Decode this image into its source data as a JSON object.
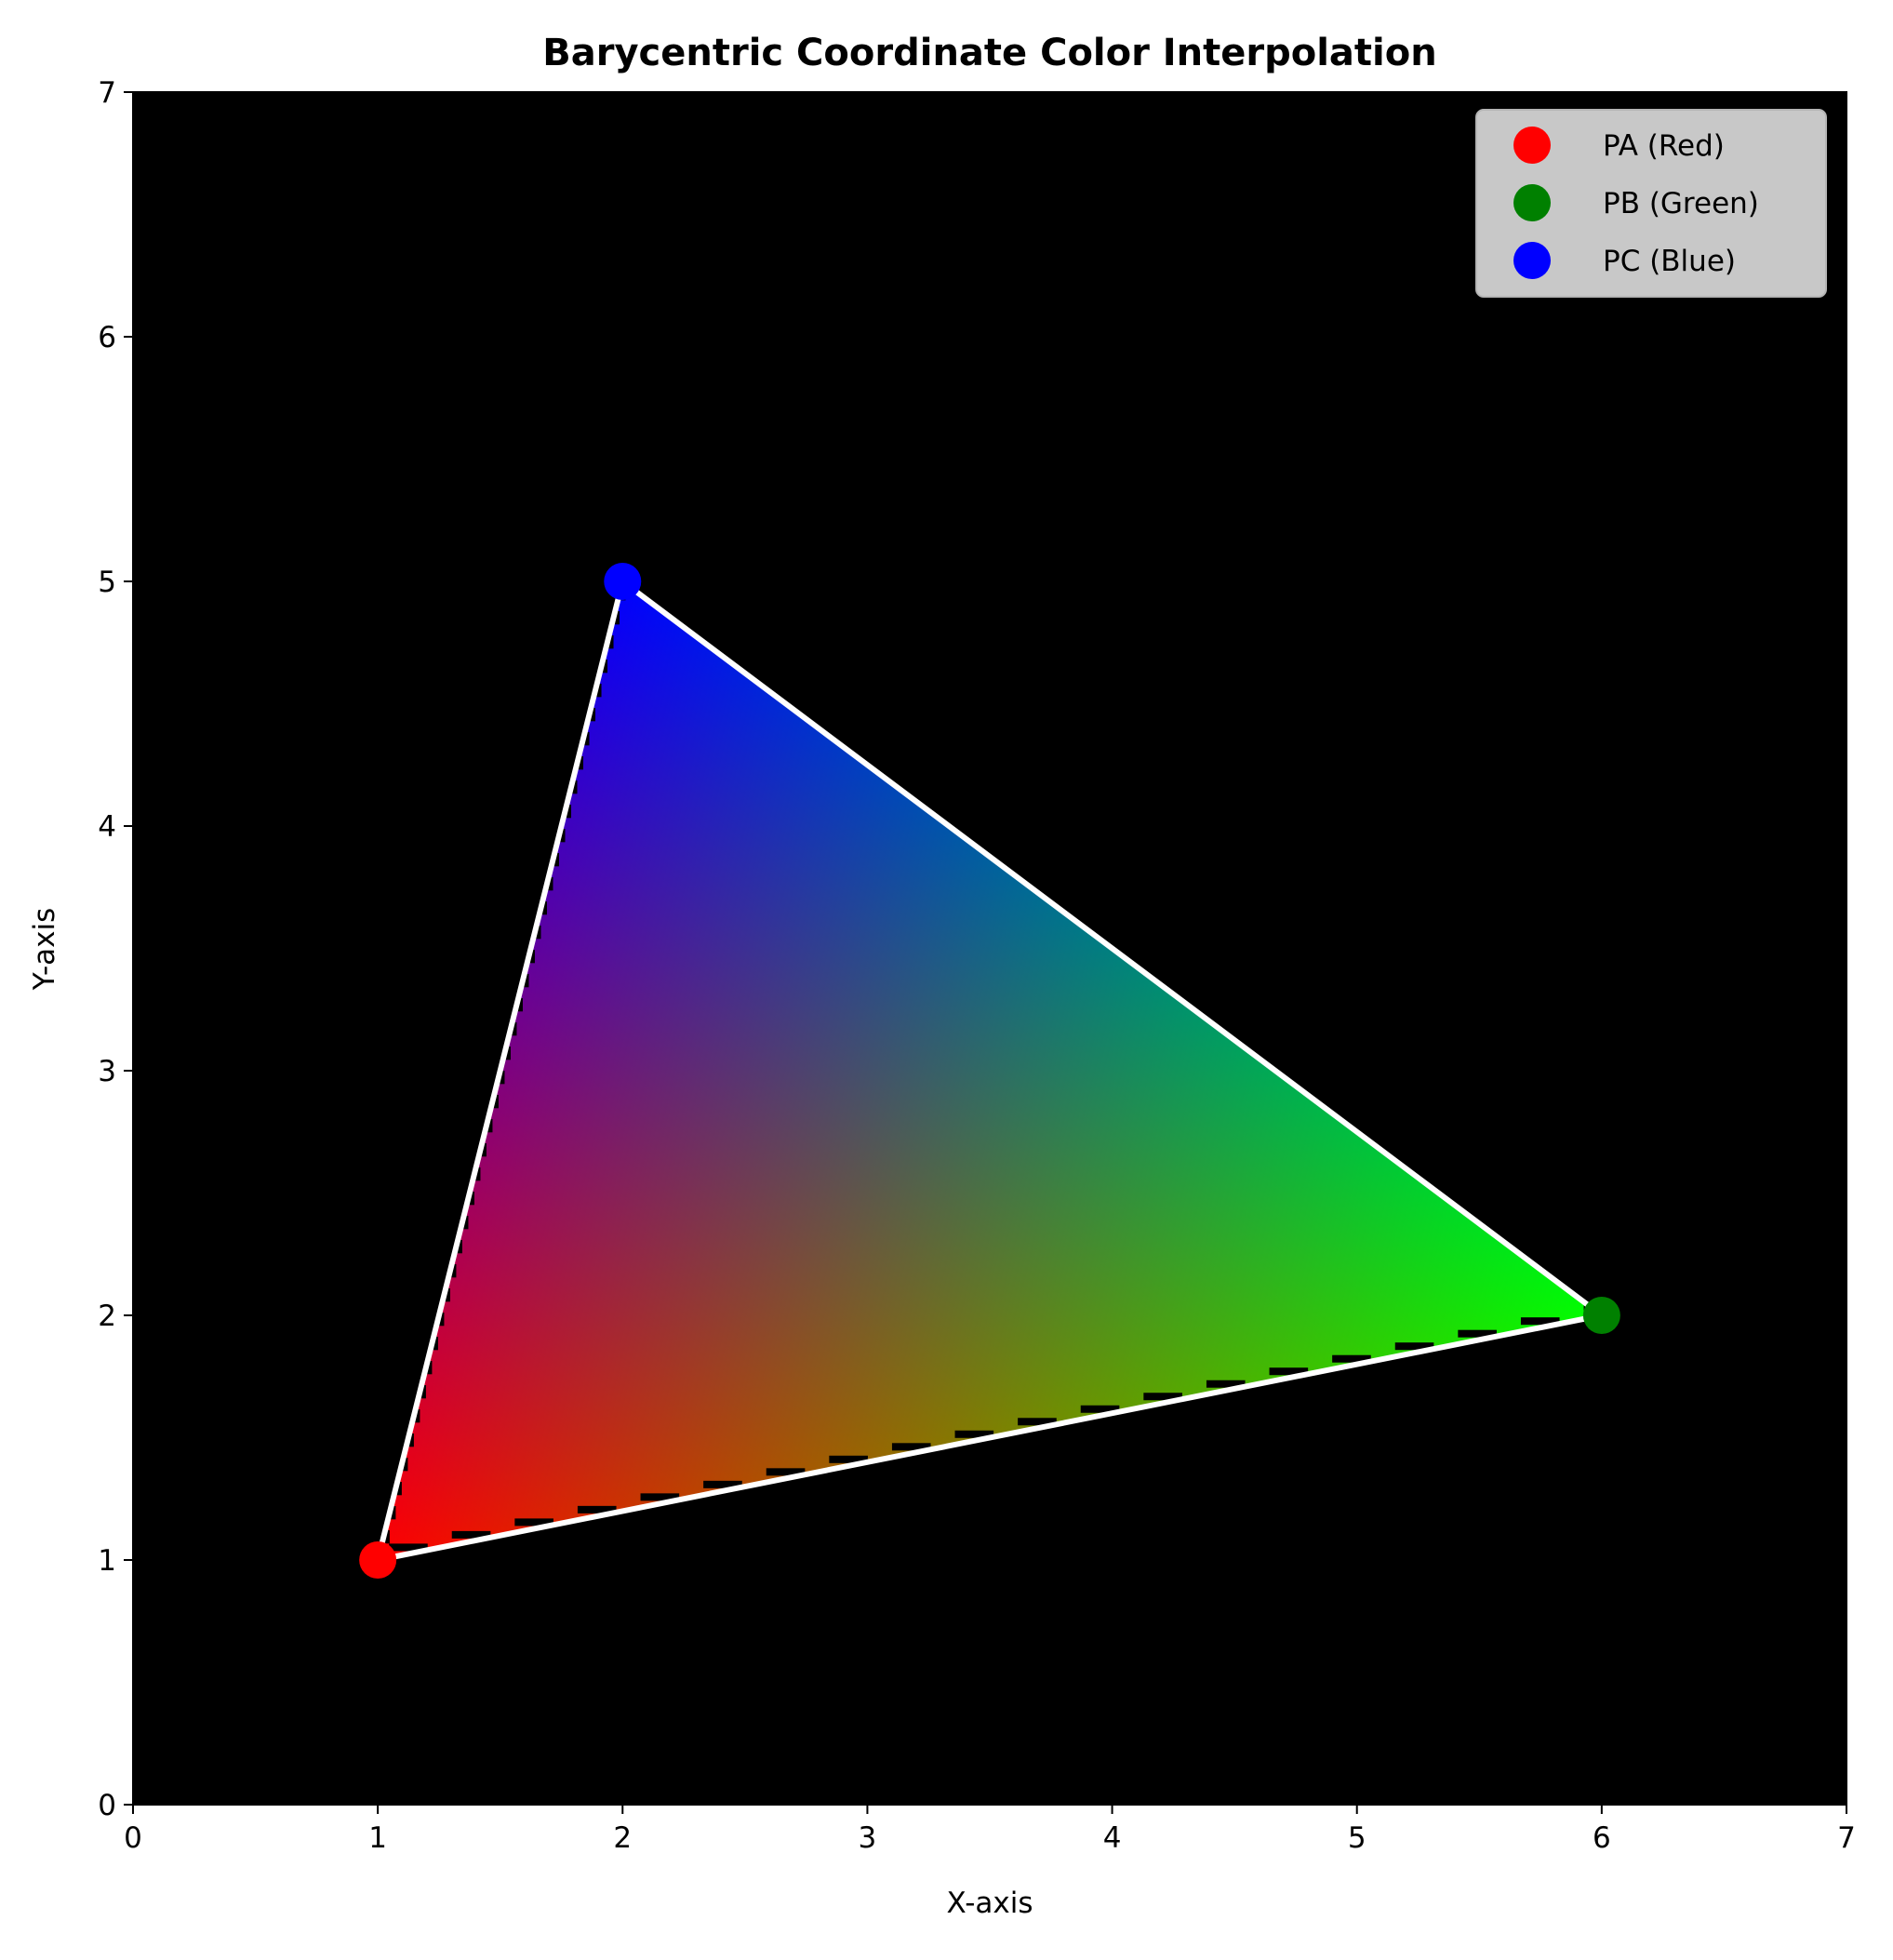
{
  "chart_data": {
    "type": "scatter",
    "title": "Barycentric Coordinate Color Interpolation",
    "xlabel": "X-axis",
    "ylabel": "Y-axis",
    "xlim": [
      0,
      7
    ],
    "ylim": [
      0,
      7
    ],
    "xticks": [
      "0",
      "1",
      "2",
      "3",
      "4",
      "5",
      "6",
      "7"
    ],
    "yticks": [
      "0",
      "1",
      "2",
      "3",
      "4",
      "5",
      "6",
      "7"
    ],
    "background_color": "#000000",
    "legend_placement": "top-right",
    "grid": false,
    "series": [
      {
        "name": "PA (Red)",
        "color": "#ff0000",
        "x": 1,
        "y": 1
      },
      {
        "name": "PB (Green)",
        "color": "#008000",
        "x": 6,
        "y": 2
      },
      {
        "name": "PC (Blue)",
        "color": "#0000ff",
        "x": 2,
        "y": 5
      }
    ],
    "triangle": {
      "vertices": [
        [
          1,
          1
        ],
        [
          6,
          2
        ],
        [
          2,
          5
        ]
      ],
      "vertex_colors": [
        "#ff0000",
        "#00ff00",
        "#0000ff"
      ],
      "outline_color": "#ffffff"
    }
  }
}
